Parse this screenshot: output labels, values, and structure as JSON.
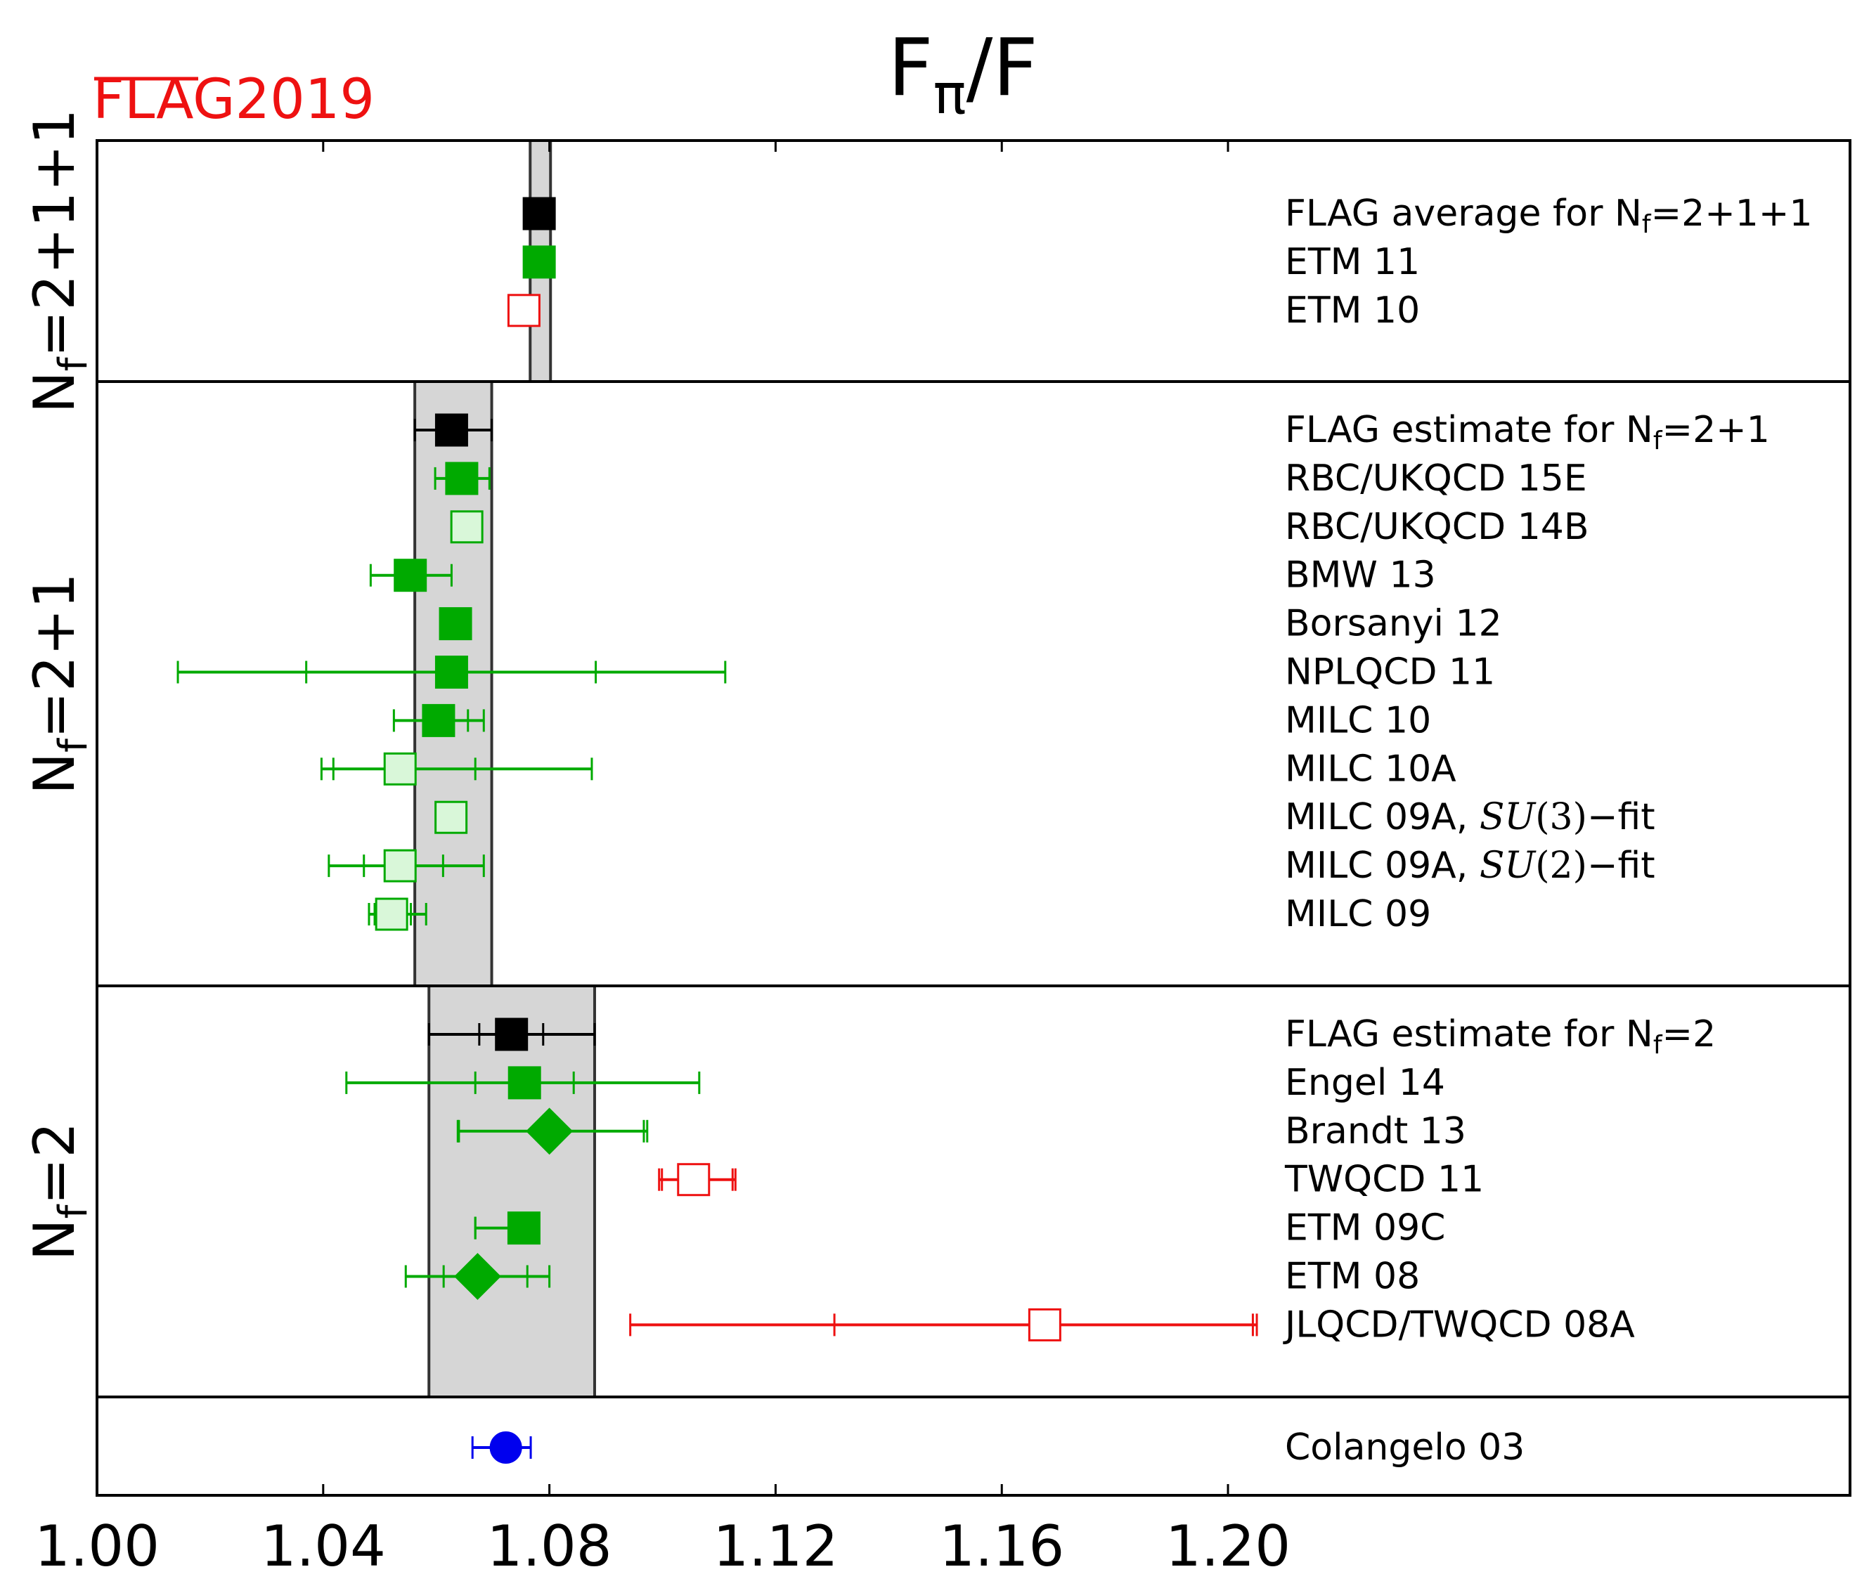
{
  "chart_data": {
    "type": "scatter",
    "title_main": "F",
    "title_sub": "π",
    "title_tail": "/F",
    "watermark": {
      "text": "FLAG2019",
      "color": "#ee1111"
    },
    "x_axis": {
      "range": [
        1.0,
        1.31
      ],
      "ticks": [
        1.0,
        1.04,
        1.08,
        1.12,
        1.16,
        1.2
      ],
      "tick_labels": [
        "1.00",
        "1.04",
        "1.08",
        "1.12",
        "1.16",
        "1.20"
      ]
    },
    "colors": {
      "average": "#000000",
      "green": "#00aa00",
      "light_green_fill": "#d9f7d9",
      "red": "#ee1111",
      "blue": "#0000ee",
      "band_fill": "#d6d6d6",
      "band_stroke": "#333333"
    },
    "groups": [
      {
        "name": "Nf=2+1+1",
        "label_main": "N",
        "label_sub": "f",
        "label_tail": "=2+1+1",
        "band": [
          1.0766,
          1.0802
        ],
        "entries": [
          {
            "label": "FLAG average for N",
            "label_sub": "f",
            "label_tail": "=2+1+1",
            "value": 1.0782,
            "err_stat": null,
            "err_tot": null,
            "marker": "square",
            "fill": "filled",
            "color": "average"
          },
          {
            "label": "ETM 11",
            "value": 1.0782,
            "err_stat": null,
            "err_tot": null,
            "marker": "square",
            "fill": "filled",
            "color": "green"
          },
          {
            "label": "ETM 10",
            "value": 1.0755,
            "err_stat": null,
            "err_tot": null,
            "marker": "square",
            "fill": "open",
            "color": "red"
          }
        ]
      },
      {
        "name": "Nf=2+1",
        "label_main": "N",
        "label_sub": "f",
        "label_tail": "=2+1",
        "band": [
          1.0562,
          1.0698
        ],
        "entries": [
          {
            "label": "FLAG estimate for N",
            "label_sub": "f",
            "label_tail": "=2+1",
            "value": 1.0627,
            "err_stat": null,
            "err_tot": [
              1.0562,
              1.0698
            ],
            "marker": "square",
            "fill": "filled",
            "color": "average"
          },
          {
            "label": "RBC/UKQCD 15E",
            "value": 1.0645,
            "err_stat": [
              1.0625,
              1.0665
            ],
            "err_tot": [
              1.0598,
              1.0694
            ],
            "marker": "square",
            "fill": "filled",
            "color": "green"
          },
          {
            "label": "RBC/UKQCD 14B",
            "value": 1.0654,
            "err_stat": null,
            "err_tot": null,
            "marker": "square",
            "fill": "light",
            "color": "green"
          },
          {
            "label": "BMW 13",
            "value": 1.0554,
            "err_stat": [
              1.054,
              1.0568
            ],
            "err_tot": [
              1.0484,
              1.0627
            ],
            "marker": "square",
            "fill": "filled",
            "color": "green"
          },
          {
            "label": "Borsanyi 12",
            "value": 1.0634,
            "err_stat": null,
            "err_tot": null,
            "marker": "square",
            "fill": "filled",
            "color": "green"
          },
          {
            "label": "NPLQCD 11",
            "value": 1.0627,
            "err_stat": [
              1.037,
              1.0882
            ],
            "err_tot": [
              1.0143,
              1.1111
            ],
            "marker": "square",
            "fill": "filled",
            "color": "green"
          },
          {
            "label": "MILC 10",
            "value": 1.0604,
            "err_stat": [
              1.0579,
              1.0656
            ],
            "err_tot": [
              1.0525,
              1.0684
            ],
            "marker": "square",
            "fill": "filled",
            "color": "green"
          },
          {
            "label": "MILC 10A",
            "value": 1.0536,
            "err_stat": [
              1.0418,
              1.0669
            ],
            "err_tot": [
              1.0397,
              1.0875
            ],
            "marker": "square",
            "fill": "light",
            "color": "green"
          },
          {
            "label": "MILC 09A, ",
            "label_ital": "SU",
            "label_paren": "(3)",
            "label_tail": "−fit",
            "value": 1.0626,
            "err_stat": [
              1.0608,
              1.064
            ],
            "err_tot": [
              1.0606,
              1.0643
            ],
            "marker": "square",
            "fill": "light",
            "color": "green"
          },
          {
            "label": "MILC 09A, ",
            "label_ital": "SU",
            "label_paren": "(2)",
            "label_tail": "−fit",
            "value": 1.0536,
            "err_stat": [
              1.0472,
              1.0612
            ],
            "err_tot": [
              1.041,
              1.0684
            ],
            "marker": "square",
            "fill": "light",
            "color": "green"
          },
          {
            "label": "MILC 09",
            "value": 1.0521,
            "err_stat": [
              1.0491,
              1.0555
            ],
            "err_tot": [
              1.0481,
              1.0582
            ],
            "marker": "square",
            "fill": "light",
            "color": "green"
          }
        ]
      },
      {
        "name": "Nf=2",
        "label_main": "N",
        "label_sub": "f",
        "label_tail": "=2",
        "band": [
          1.0587,
          1.088
        ],
        "entries": [
          {
            "label": "FLAG estimate for N",
            "label_sub": "f",
            "label_tail": "=2",
            "value": 1.0733,
            "err_stat": [
              1.0676,
              1.0789
            ],
            "err_tot": [
              1.0587,
              1.088
            ],
            "marker": "square",
            "fill": "filled",
            "color": "average"
          },
          {
            "label": "Engel 14",
            "value": 1.0756,
            "err_stat": [
              1.0669,
              1.0843
            ],
            "err_tot": [
              1.0441,
              1.1065
            ],
            "marker": "square",
            "fill": "filled",
            "color": "green"
          },
          {
            "label": "Brandt 13",
            "value": 1.08,
            "err_stat": [
              1.064,
              1.0967
            ],
            "err_tot": [
              1.0638,
              1.0973
            ],
            "marker": "diamond",
            "fill": "filled",
            "color": "green"
          },
          {
            "label": "TWQCD 11",
            "value": 1.1055,
            "err_stat": [
              1.0999,
              1.1124
            ],
            "err_tot": [
              1.0994,
              1.1129
            ],
            "marker": "square",
            "fill": "open",
            "color": "red"
          },
          {
            "label": "ETM 09C",
            "value": 1.0755,
            "err_stat": [
              1.0669,
              1.077
            ],
            "err_tot": [
              1.0669,
              1.077
            ],
            "marker": "square",
            "fill": "filled",
            "color": "green"
          },
          {
            "label": "ETM 08",
            "value": 1.0673,
            "err_stat": [
              1.0613,
              1.0761
            ],
            "err_tot": [
              1.0546,
              1.08
            ],
            "marker": "diamond",
            "fill": "filled",
            "color": "green"
          },
          {
            "label": "JLQCD/TWQCD 08A",
            "value": 1.1676,
            "err_stat": [
              1.1304,
              1.2044
            ],
            "err_tot": [
              1.0943,
              1.2051
            ],
            "marker": "square",
            "fill": "open",
            "color": "red"
          }
        ]
      },
      {
        "name": "pheno",
        "label_main": "",
        "label_sub": "",
        "label_tail": "",
        "band": null,
        "entries": [
          {
            "label": "Colangelo 03",
            "value": 1.0723,
            "err_stat": null,
            "err_tot": [
              1.0664,
              1.0767
            ],
            "marker": "circle",
            "fill": "filled",
            "color": "blue"
          }
        ]
      }
    ]
  }
}
